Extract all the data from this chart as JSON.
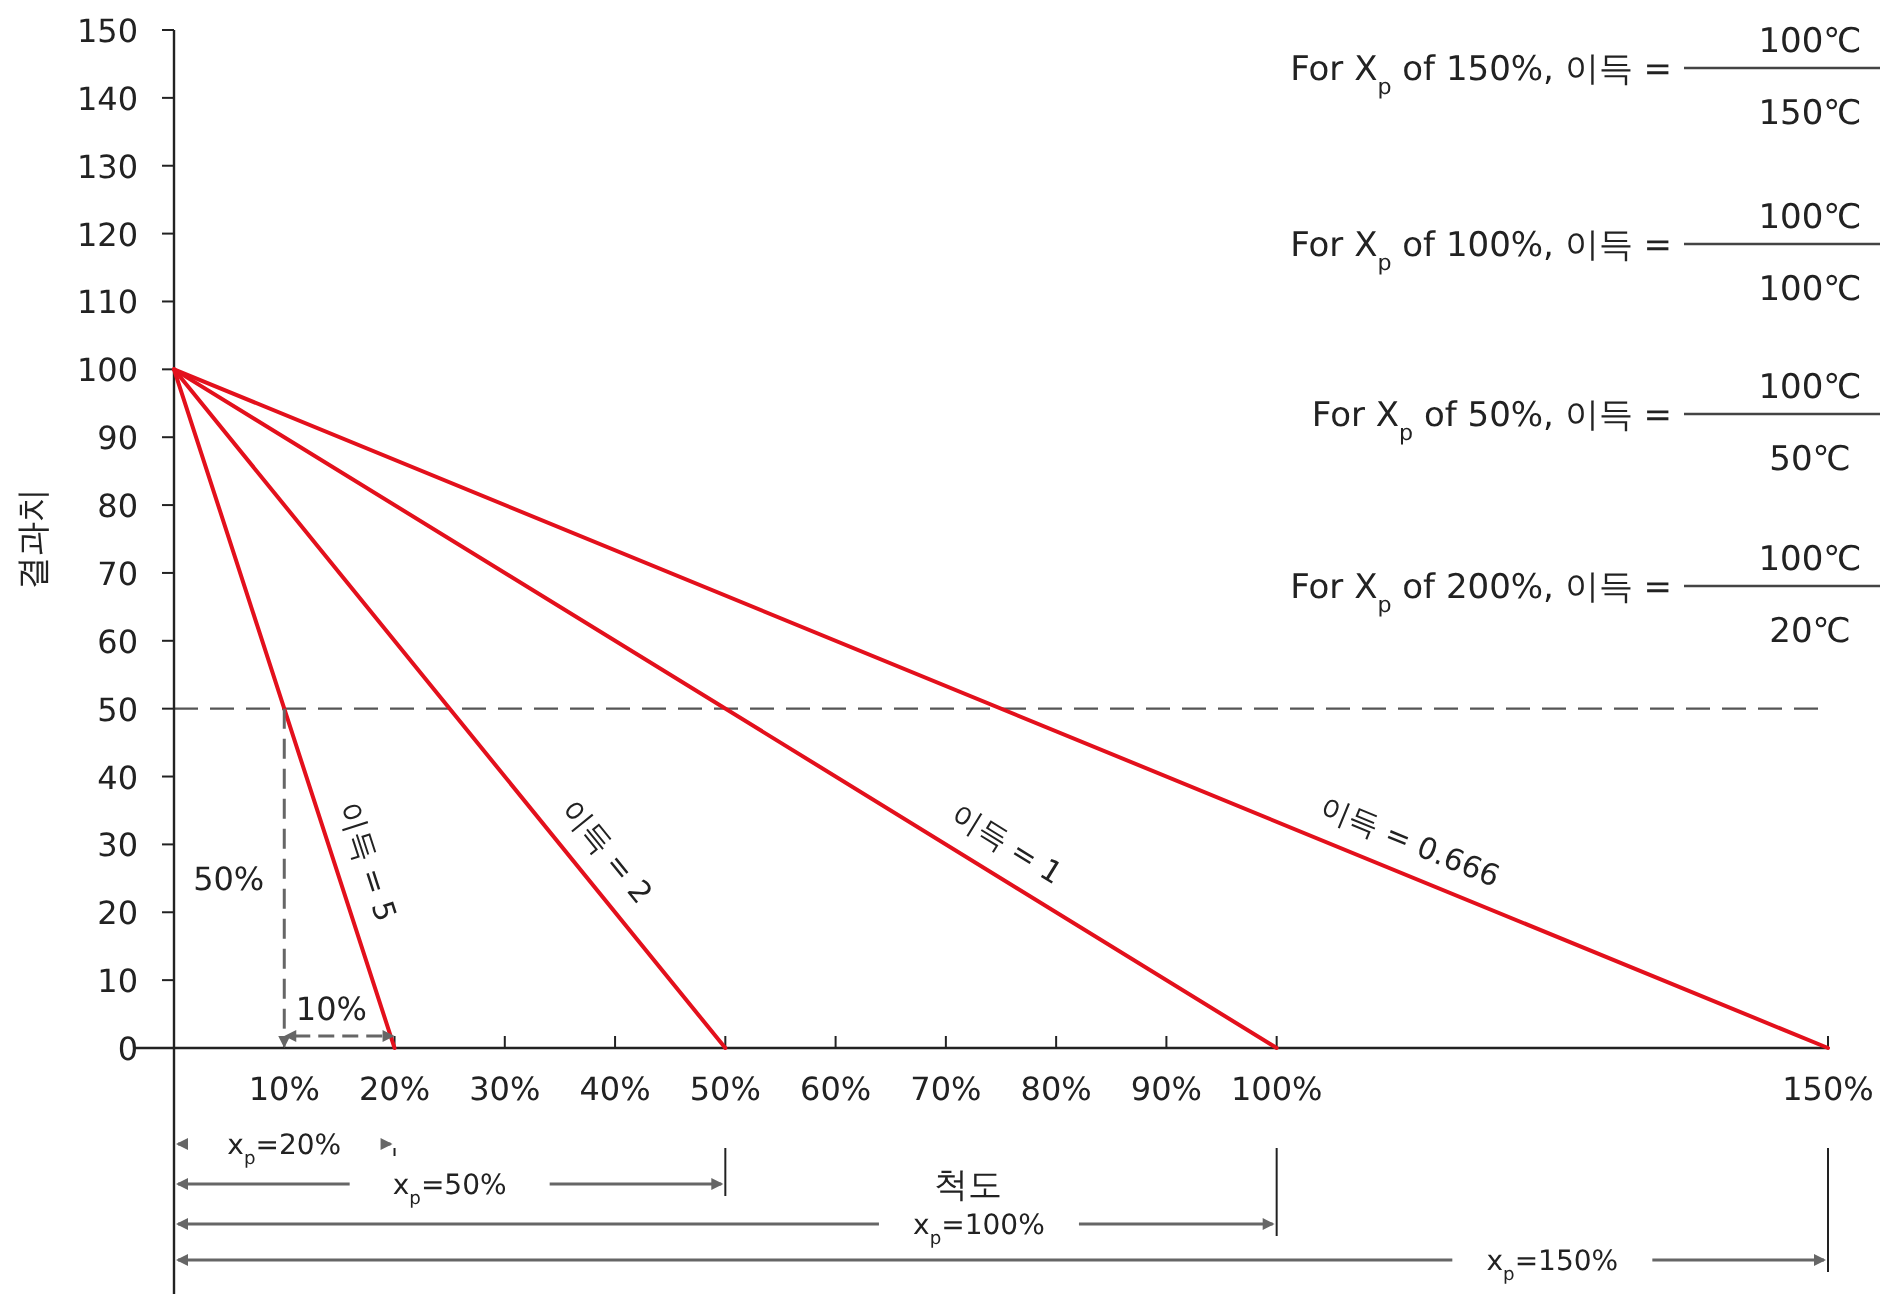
{
  "chart_data": {
    "type": "line",
    "xlabel": "척도",
    "ylabel": "결과치",
    "xlim": [
      0,
      150
    ],
    "ylim": [
      0,
      150
    ],
    "xticks": [
      {
        "value": 0,
        "label": null
      },
      {
        "value": 10,
        "label": "10%"
      },
      {
        "value": 20,
        "label": "20%"
      },
      {
        "value": 30,
        "label": "30%"
      },
      {
        "value": 40,
        "label": "40%"
      },
      {
        "value": 50,
        "label": "50%"
      },
      {
        "value": 60,
        "label": "60%"
      },
      {
        "value": 70,
        "label": "70%"
      },
      {
        "value": 80,
        "label": "80%"
      },
      {
        "value": 90,
        "label": "90%"
      },
      {
        "value": 100,
        "label": "100%"
      },
      {
        "value": 150,
        "label": "150%"
      }
    ],
    "yticks": [
      0,
      10,
      20,
      30,
      40,
      50,
      60,
      70,
      80,
      90,
      100,
      110,
      120,
      130,
      140,
      150
    ],
    "grid": false,
    "legend": false,
    "series": [
      {
        "name": "이득 = 5",
        "color": "#e3101c",
        "x": [
          0,
          20
        ],
        "values": [
          100,
          0
        ]
      },
      {
        "name": "이득 = 2",
        "color": "#e3101c",
        "x": [
          0,
          50
        ],
        "values": [
          100,
          0
        ]
      },
      {
        "name": "이득 = 1",
        "color": "#e3101c",
        "x": [
          0,
          100
        ],
        "values": [
          100,
          0
        ]
      },
      {
        "name": "이득 = 0.666",
        "color": "#e3101c",
        "x": [
          0,
          150
        ],
        "values": [
          100,
          0
        ]
      }
    ],
    "ref_lines": [
      {
        "axis": "y",
        "value": 50,
        "label": null,
        "color": "#555555",
        "line_style": "dashed"
      }
    ],
    "annotations": [
      "50%",
      {
        "text": "10%",
        "x": 20,
        "y": 0
      },
      "x$_{p}$=20%",
      "x$_{p}$=50%",
      "x$_{p}$=100%",
      "x$_{p}$=150%",
      "For X$_{p}$ of 150%, 이득 =",
      "100℃",
      "150℃",
      "For X$_{p}$ of 100%, 이득 =",
      "100℃",
      "100℃",
      "For X$_{p}$ of 50%, 이득 =",
      "100℃",
      "50℃",
      "For X$_{p}$ of 200%, 이득 =",
      "100℃",
      "20℃"
    ]
  }
}
